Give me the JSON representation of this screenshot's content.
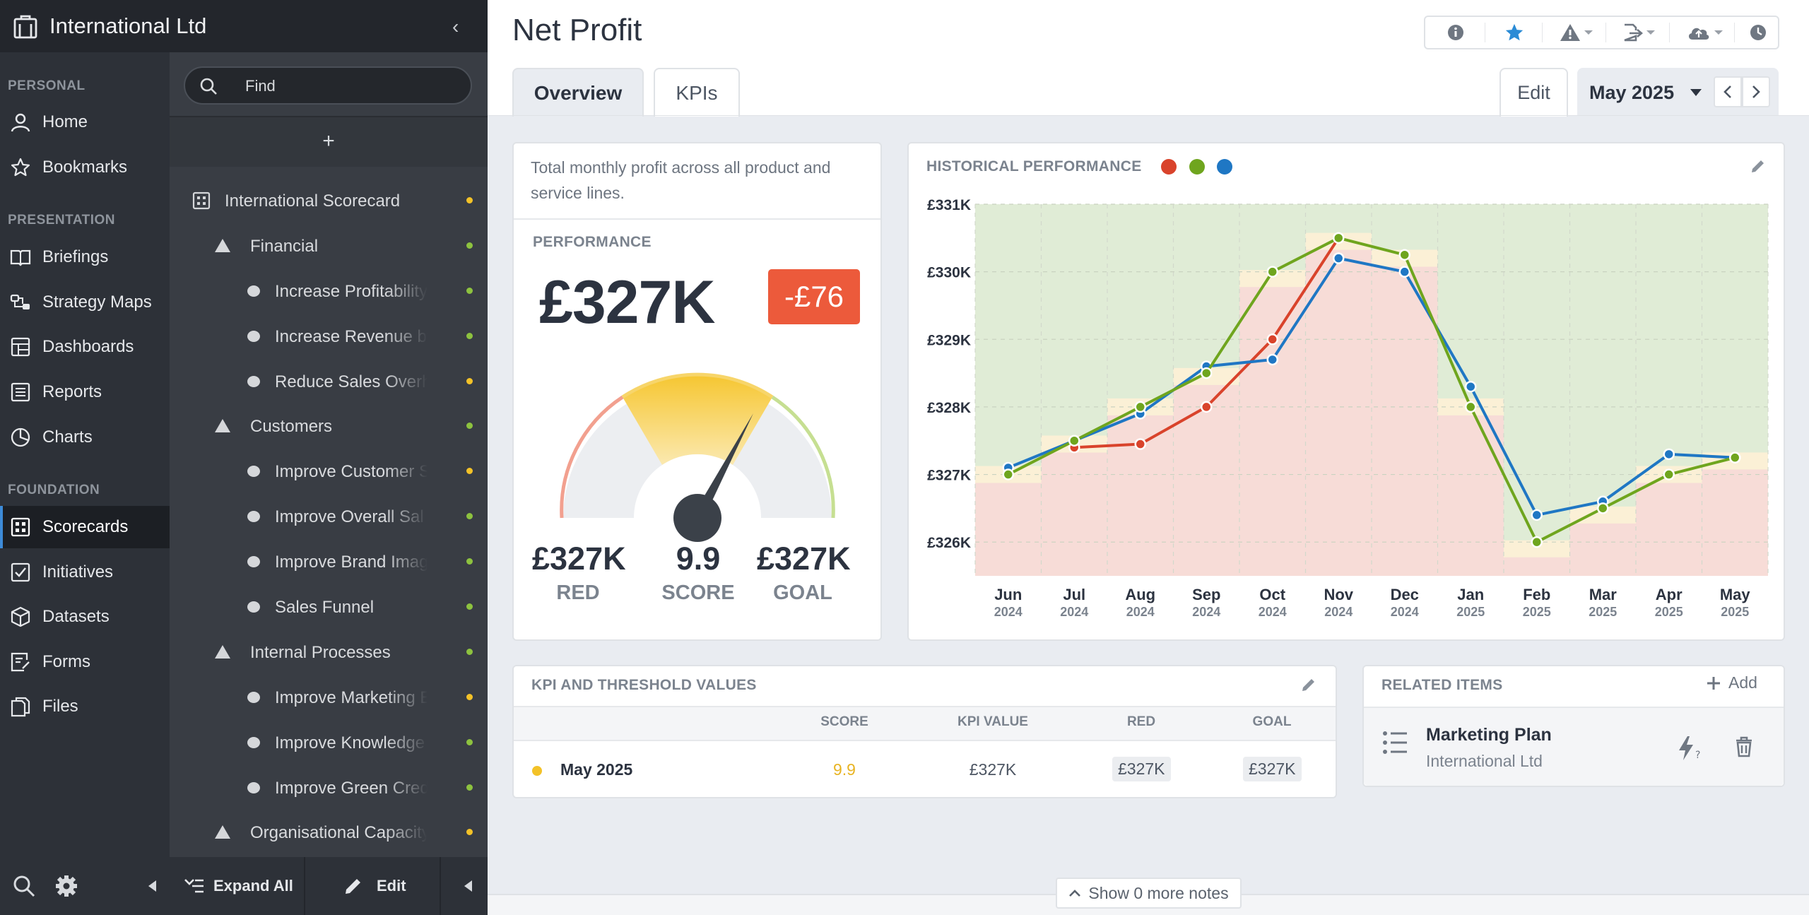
{
  "org": {
    "name": "International Ltd"
  },
  "nav": {
    "sections": {
      "personal": "PERSONAL",
      "presentation": "PRESENTATION",
      "foundation": "FOUNDATION"
    },
    "items": [
      {
        "label": "Home"
      },
      {
        "label": "Bookmarks"
      },
      {
        "label": "Briefings"
      },
      {
        "label": "Strategy Maps"
      },
      {
        "label": "Dashboards"
      },
      {
        "label": "Reports"
      },
      {
        "label": "Charts"
      },
      {
        "label": "Scorecards"
      },
      {
        "label": "Initiatives"
      },
      {
        "label": "Datasets"
      },
      {
        "label": "Forms"
      },
      {
        "label": "Files"
      }
    ]
  },
  "tree": {
    "search_placeholder": "Find",
    "add": "+",
    "items": [
      {
        "label": "International Scorecard",
        "status": "#f3c228"
      },
      {
        "label": "Financial",
        "status": "#8dc23f"
      },
      {
        "label": "Increase Profitability",
        "status": "#8dc23f"
      },
      {
        "label": "Increase Revenue by",
        "status": "#8dc23f"
      },
      {
        "label": "Reduce Sales Overhe",
        "status": "#f3c228"
      },
      {
        "label": "Customers",
        "status": "#8dc23f"
      },
      {
        "label": "Improve Customer S",
        "status": "#f3c228"
      },
      {
        "label": "Improve Overall Sal",
        "status": "#8dc23f"
      },
      {
        "label": "Improve Brand Imag",
        "status": "#8dc23f"
      },
      {
        "label": "Sales Funnel",
        "status": "#8dc23f"
      },
      {
        "label": "Internal Processes",
        "status": "#8dc23f"
      },
      {
        "label": "Improve Marketing E",
        "status": "#f3c228"
      },
      {
        "label": "Improve Knowledge",
        "status": "#8dc23f"
      },
      {
        "label": "Improve Green Cred",
        "status": "#8dc23f"
      },
      {
        "label": "Organisational Capacity",
        "status": "#f3c228"
      }
    ],
    "footer": {
      "expand_all": "Expand All",
      "edit": "Edit"
    }
  },
  "header": {
    "title": "Net Profit",
    "tabs": [
      "Overview",
      "KPIs"
    ],
    "edit": "Edit",
    "period": "May 2025",
    "tool_icons": [
      "info-icon",
      "star-icon",
      "warning-icon",
      "export-icon",
      "cloud-icon",
      "clock-icon"
    ]
  },
  "performance": {
    "description": "Total monthly profit across all product and service lines.",
    "title": "PERFORMANCE",
    "value": "£327K",
    "delta": "-£76",
    "gauge": {
      "red": {
        "value": "£327K",
        "label": "RED"
      },
      "score": {
        "value": "9.9",
        "label": "SCORE"
      },
      "goal": {
        "value": "£327K",
        "label": "GOAL"
      },
      "needle_fraction": 0.74
    }
  },
  "chart_data": {
    "type": "line",
    "title": "HISTORICAL PERFORMANCE",
    "categories": [
      "Jun 2024",
      "Jul 2024",
      "Aug 2024",
      "Sep 2024",
      "Oct 2024",
      "Nov 2024",
      "Dec 2024",
      "Jan 2025",
      "Feb 2025",
      "Mar 2025",
      "Apr 2025",
      "May 2025"
    ],
    "x_month": [
      "Jun",
      "Jul",
      "Aug",
      "Sep",
      "Oct",
      "Nov",
      "Dec",
      "Jan",
      "Feb",
      "Mar",
      "Apr",
      "May"
    ],
    "x_year": [
      "2024",
      "2024",
      "2024",
      "2024",
      "2024",
      "2024",
      "2024",
      "2025",
      "2025",
      "2025",
      "2025",
      "2025"
    ],
    "y_ticks": [
      "£331K",
      "£330K",
      "£329K",
      "£328K",
      "£327K",
      "£326K"
    ],
    "ylim": [
      325.5,
      331
    ],
    "grid": true,
    "series": [
      {
        "color": "#d9432b",
        "values": [
          null,
          327.4,
          327.45,
          328.0,
          329.0,
          330.5,
          null,
          null,
          null,
          null,
          null,
          null
        ]
      },
      {
        "color": "#1f77c4",
        "values": [
          327.1,
          327.5,
          327.9,
          328.6,
          328.7,
          330.2,
          330.0,
          328.3,
          326.4,
          326.6,
          327.3,
          327.25
        ]
      },
      {
        "color": "#6fa51e",
        "values": [
          327.0,
          327.5,
          328.0,
          328.5,
          330.0,
          330.5,
          330.25,
          328.0,
          326.0,
          326.5,
          327.0,
          327.25
        ]
      }
    ],
    "thresholds": [
      327.0,
      327.45,
      328.0,
      328.45,
      329.9,
      330.45,
      330.2,
      328.0,
      325.9,
      326.4,
      327.0,
      327.2
    ]
  },
  "kpi_table": {
    "title": "KPI AND THRESHOLD VALUES",
    "columns": [
      "SCORE",
      "KPI VALUE",
      "RED",
      "GOAL"
    ],
    "rows": [
      {
        "period": "May 2025",
        "score": "9.9",
        "kpi_value": "£327K",
        "red": "£327K",
        "goal": "£327K",
        "status": "#f3c228"
      }
    ]
  },
  "related": {
    "title": "RELATED ITEMS",
    "add": "Add",
    "items": [
      {
        "name": "Marketing Plan",
        "org": "International Ltd"
      }
    ]
  },
  "notes": {
    "label": "Show 0 more notes"
  }
}
